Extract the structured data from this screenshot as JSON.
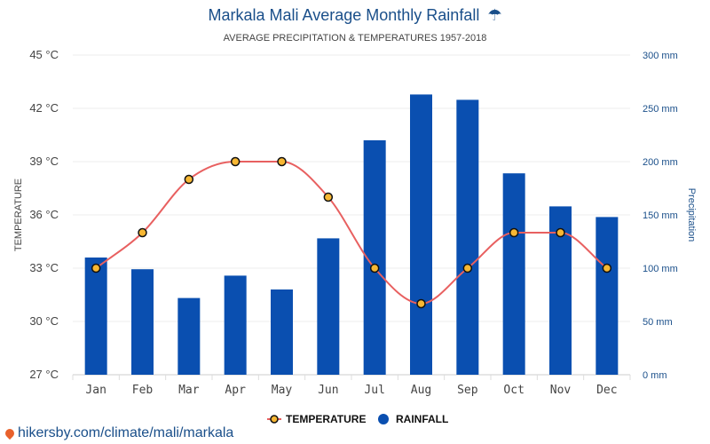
{
  "header": {
    "title": "Markala Mali Average Monthly Rainfall",
    "title_icon": "umbrella-icon",
    "title_icon_glyph": "☂",
    "subtitle": "AVERAGE PRECIPITATION & TEMPERATURES 1957-2018"
  },
  "chart_data": {
    "type": "bar",
    "categories": [
      "Jan",
      "Feb",
      "Mar",
      "Apr",
      "May",
      "Jun",
      "Jul",
      "Aug",
      "Sep",
      "Oct",
      "Nov",
      "Dec"
    ],
    "series": [
      {
        "name": "RAINFALL",
        "type": "bar",
        "axis": "right",
        "unit": "mm",
        "color": "#0a4fb0",
        "values": [
          110,
          99,
          72,
          93,
          80,
          128,
          220,
          263,
          258,
          189,
          158,
          148
        ]
      },
      {
        "name": "TEMPERATURE",
        "type": "line",
        "axis": "left",
        "unit": "°C",
        "color": "#e86060",
        "marker_fill": "#f7b733",
        "values": [
          33,
          35,
          38,
          39,
          39,
          37,
          33,
          31,
          33,
          35,
          35,
          33
        ]
      }
    ],
    "left_axis": {
      "label": "TEMPERATURE",
      "range": [
        27,
        45
      ],
      "ticks": [
        "45 °C",
        "42 °C",
        "39 °C",
        "36 °C",
        "33 °C",
        "30 °C",
        "27 °C"
      ],
      "color": "#444444"
    },
    "right_axis": {
      "label": "Precipitation",
      "range": [
        0,
        300
      ],
      "ticks": [
        "300 mm",
        "250 mm",
        "200 mm",
        "150 mm",
        "100 mm",
        "50 mm",
        "0 mm"
      ],
      "color": "#1a4f8a"
    },
    "grid": true,
    "legend_position": "bottom-center"
  },
  "legend": {
    "temperature_label": "TEMPERATURE",
    "rainfall_label": "RAINFALL"
  },
  "footer": {
    "source_text": "hikersby.com/climate/mali/markala"
  }
}
